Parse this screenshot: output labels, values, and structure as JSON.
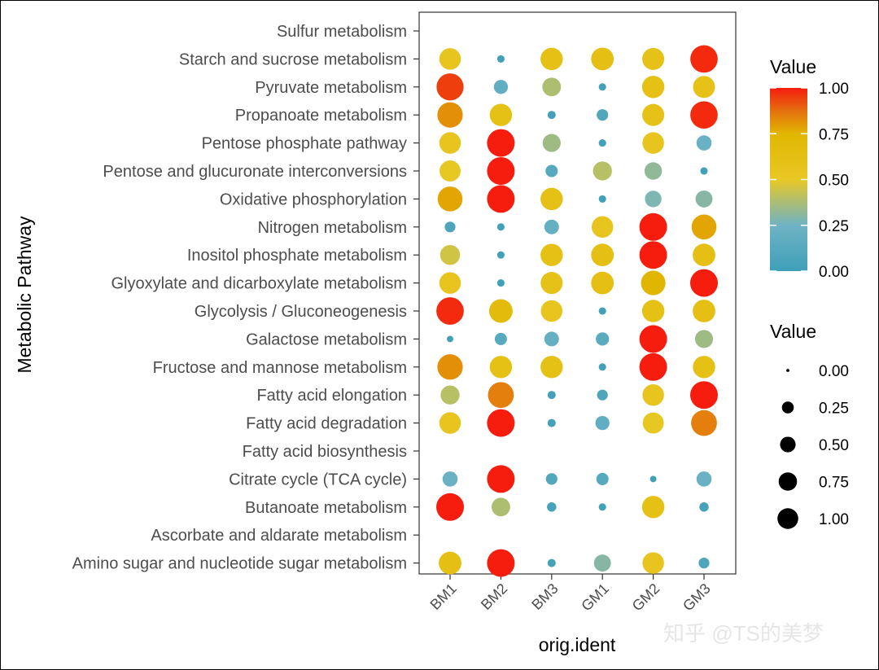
{
  "chart_data": {
    "type": "scatter",
    "xlabel": "orig.ident",
    "ylabel": "Metabolic Pathway",
    "x_categories": [
      "BM1",
      "BM2",
      "BM3",
      "GM1",
      "GM2",
      "GM3"
    ],
    "y_categories": [
      "Sulfur metabolism",
      "Starch and sucrose metabolism",
      "Pyruvate metabolism",
      "Propanoate metabolism",
      "Pentose phosphate pathway",
      "Pentose and glucuronate interconversions",
      "Oxidative phosphorylation",
      "Nitrogen metabolism",
      "Inositol phosphate metabolism",
      "Glyoxylate and dicarboxylate metabolism",
      "Glycolysis / Gluconeogenesis",
      "Galactose metabolism",
      "Fructose and mannose metabolism",
      "Fatty acid elongation",
      "Fatty acid degradation",
      "Fatty acid biosynthesis",
      "Citrate cycle (TCA cycle)",
      "Butanoate metabolism",
      "Ascorbate and aldarate metabolism",
      "Amino sugar and nucleotide sugar metabolism"
    ],
    "values": [
      [
        null,
        null,
        null,
        null,
        null,
        null
      ],
      [
        0.55,
        0.02,
        0.6,
        0.62,
        0.58,
        0.98
      ],
      [
        0.95,
        0.18,
        0.38,
        0.02,
        0.6,
        0.58
      ],
      [
        0.82,
        0.6,
        0.03,
        0.1,
        0.58,
        0.98
      ],
      [
        0.55,
        1.0,
        0.35,
        0.02,
        0.55,
        0.22
      ],
      [
        0.52,
        1.0,
        0.12,
        0.4,
        0.32,
        0.02
      ],
      [
        0.78,
        1.0,
        0.6,
        0.02,
        0.28,
        0.3
      ],
      [
        0.08,
        0.02,
        0.2,
        0.55,
        1.0,
        0.78
      ],
      [
        0.45,
        0.02,
        0.6,
        0.62,
        1.0,
        0.62
      ],
      [
        0.55,
        0.02,
        0.58,
        0.62,
        0.75,
        1.0
      ],
      [
        0.98,
        0.68,
        0.55,
        0.02,
        0.6,
        0.62
      ],
      [
        0.01,
        0.12,
        0.2,
        0.15,
        1.0,
        0.35
      ],
      [
        0.82,
        0.6,
        0.6,
        0.02,
        1.0,
        0.6
      ],
      [
        0.4,
        0.85,
        0.03,
        0.08,
        0.55,
        1.0
      ],
      [
        0.55,
        1.0,
        0.03,
        0.18,
        0.52,
        0.85
      ],
      [
        null,
        null,
        null,
        null,
        null,
        null
      ],
      [
        0.22,
        1.0,
        0.1,
        0.12,
        0.01,
        0.22
      ],
      [
        1.0,
        0.38,
        0.05,
        0.02,
        0.6,
        0.05
      ],
      [
        null,
        null,
        null,
        null,
        null,
        null
      ],
      [
        0.62,
        1.0,
        0.03,
        0.3,
        0.55,
        0.08
      ]
    ],
    "color_legend": {
      "title": "Value",
      "ticks": [
        "1.00",
        "0.75",
        "0.50",
        "0.25",
        "0.00"
      ],
      "colors": [
        "#3e9fb8",
        "#6fb3c4",
        "#e8c825",
        "#e1b600",
        "#e4730e",
        "#f61d0e"
      ]
    },
    "size_legend": {
      "title": "Value",
      "ticks": [
        "0.00",
        "0.25",
        "0.50",
        "0.75",
        "1.00"
      ]
    }
  },
  "watermark": "知乎 @TS的美梦"
}
